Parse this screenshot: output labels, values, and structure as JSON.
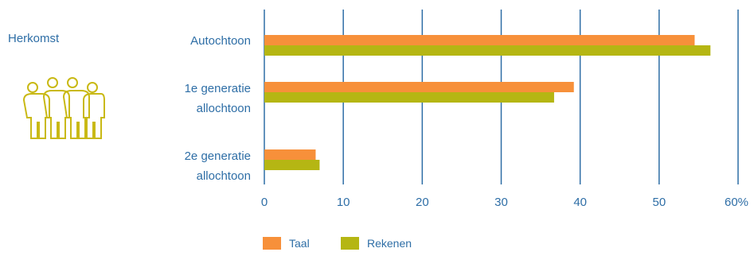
{
  "section_label": "Herkomst",
  "icon": "people-group-icon",
  "chart_data": {
    "type": "bar",
    "orientation": "horizontal",
    "categories": [
      [
        "Autochtoon"
      ],
      [
        "1e generatie",
        "allochtoon"
      ],
      [
        "2e generatie",
        "allochtoon"
      ]
    ],
    "series": [
      {
        "name": "Taal",
        "color": "#f7903a",
        "values": [
          54.5,
          39.2,
          6.5
        ]
      },
      {
        "name": "Rekenen",
        "color": "#b5b613",
        "values": [
          56.5,
          36.7,
          7.0
        ]
      }
    ],
    "xlim": [
      0,
      60
    ],
    "ticks": [
      "0",
      "10",
      "20",
      "30",
      "40",
      "50",
      "60%"
    ],
    "tick_values": [
      0,
      10,
      20,
      30,
      40,
      50,
      60
    ],
    "grid": true,
    "grid_color": "#2e6ea6",
    "legend_position": "bottom"
  }
}
